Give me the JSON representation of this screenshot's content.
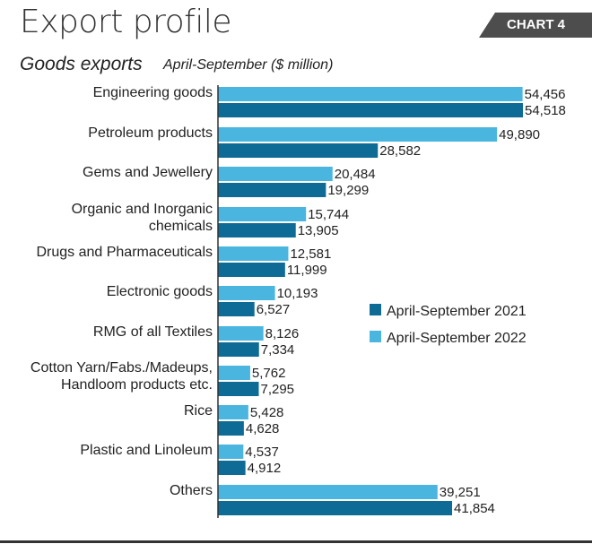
{
  "header": {
    "title": "Export profile",
    "badge": "CHART 4",
    "subtitle": "Goods exports",
    "period_unit": "April-September  ($ million)"
  },
  "colors": {
    "series_2021": "#0e6b96",
    "series_2022": "#4ab5df"
  },
  "chart_data": {
    "type": "bar",
    "orientation": "horizontal",
    "categories": [
      [
        "Engineering goods"
      ],
      [
        "Petroleum products"
      ],
      [
        "Gems and Jewellery"
      ],
      [
        "Organic and Inorganic",
        "chemicals"
      ],
      [
        "Drugs and Pharmaceuticals"
      ],
      [
        "Electronic goods"
      ],
      [
        "RMG of all Textiles"
      ],
      [
        "Cotton Yarn/Fabs./Madeups,",
        "Handloom products etc."
      ],
      [
        "Rice"
      ],
      [
        "Plastic and Linoleum"
      ],
      [
        "Others"
      ]
    ],
    "series": [
      {
        "name": "April-September 2022",
        "values": [
          54456,
          49890,
          20484,
          15744,
          12581,
          10193,
          8126,
          5762,
          5428,
          4537,
          39251
        ],
        "labels": [
          "54,456",
          "49,890",
          "20,484",
          "15,744",
          "12,581",
          "10,193",
          "8,126",
          "5,762",
          "5,428",
          "4,537",
          "39,251"
        ]
      },
      {
        "name": "April-September 2021",
        "values": [
          54518,
          28582,
          19299,
          13905,
          11999,
          6527,
          7334,
          7295,
          4628,
          4912,
          41854
        ],
        "labels": [
          "54,518",
          "28,582",
          "19,299",
          "13,905",
          "11,999",
          "6,527",
          "7,334",
          "7,295",
          "4,628",
          "4,912",
          "41,854"
        ]
      }
    ],
    "legend": [
      "April-September 2021",
      "April-September 2022"
    ],
    "legend_position": "right-middle",
    "xlim": [
      0,
      57500
    ]
  }
}
